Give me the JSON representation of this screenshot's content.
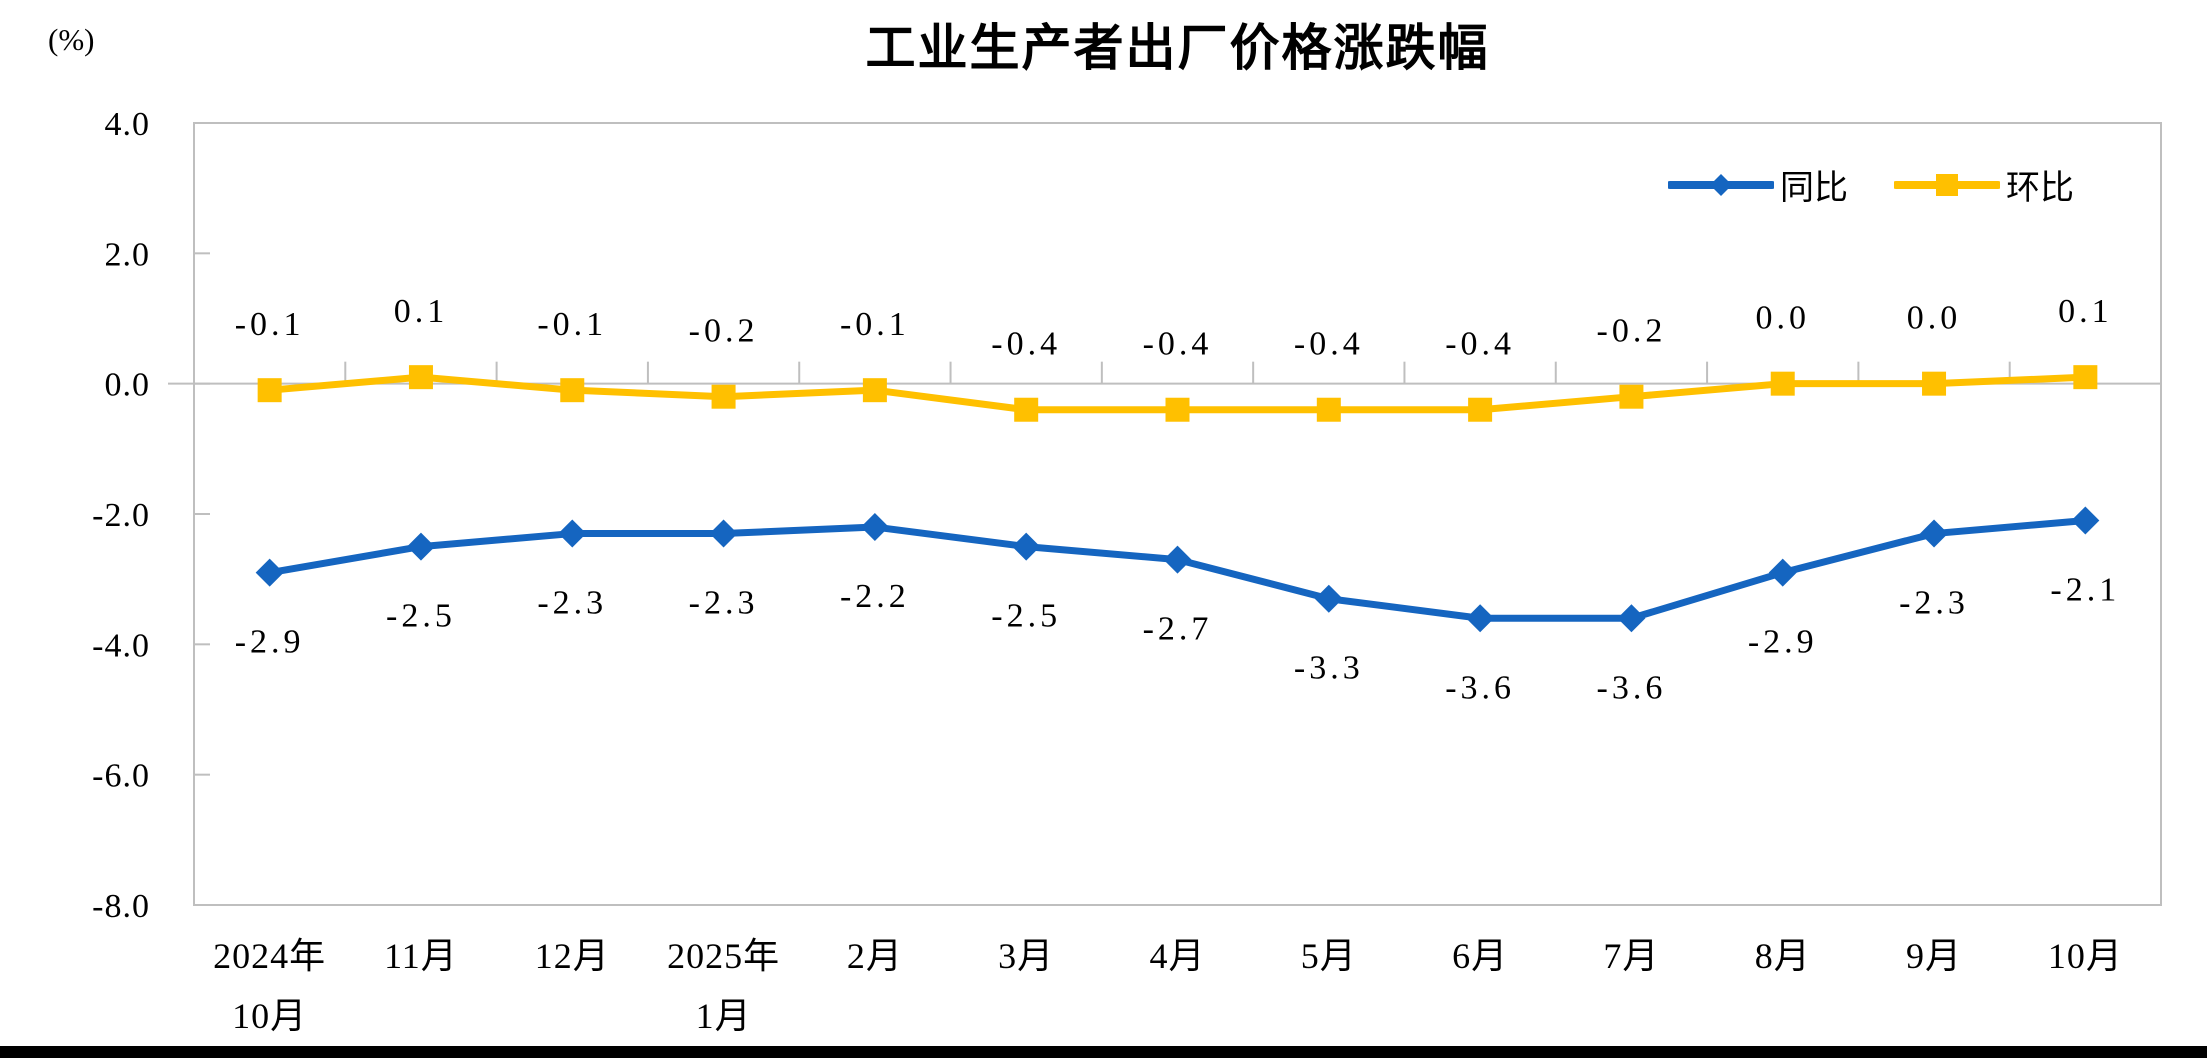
{
  "window": {
    "bottom_edge_color": "#000000"
  },
  "chart_data": {
    "type": "line",
    "title": "工业生产者出厂价格涨跌幅",
    "unit_label": "(%)",
    "categories": [
      [
        "2024年",
        "10月"
      ],
      [
        "11月"
      ],
      [
        "12月"
      ],
      [
        "2025年",
        "1月"
      ],
      [
        "2月"
      ],
      [
        "3月"
      ],
      [
        "4月"
      ],
      [
        "5月"
      ],
      [
        "6月"
      ],
      [
        "7月"
      ],
      [
        "8月"
      ],
      [
        "9月"
      ],
      [
        "10月"
      ]
    ],
    "series": [
      {
        "name": "同比",
        "marker": "diamond",
        "color": "#1565C0",
        "label_position": "below",
        "values": [
          -2.9,
          -2.5,
          -2.3,
          -2.3,
          -2.2,
          -2.5,
          -2.7,
          -3.3,
          -3.6,
          -3.6,
          -2.9,
          -2.3,
          -2.1
        ],
        "labels": [
          "-2.9",
          "-2.5",
          "-2.3",
          "-2.3",
          "-2.2",
          "-2.5",
          "-2.7",
          "-3.3",
          "-3.6",
          "-3.6",
          "-2.9",
          "-2.3",
          "-2.1"
        ]
      },
      {
        "name": "环比",
        "marker": "square",
        "color": "#FFC000",
        "label_position": "above",
        "values": [
          -0.1,
          0.1,
          -0.1,
          -0.2,
          -0.1,
          -0.4,
          -0.4,
          -0.4,
          -0.4,
          -0.2,
          0.0,
          0.0,
          0.1
        ],
        "labels": [
          "-0.1",
          "0.1",
          "-0.1",
          "-0.2",
          "-0.1",
          "-0.4",
          "-0.4",
          "-0.4",
          "-0.4",
          "-0.2",
          "0.0",
          "0.0",
          "0.1"
        ]
      }
    ],
    "y_axis": {
      "min": -8.0,
      "max": 4.0,
      "step": 2.0,
      "tick_labels": [
        "4.0",
        "2.0",
        "0.0",
        "-2.0",
        "-4.0",
        "-6.0",
        "-8.0"
      ]
    },
    "legend": {
      "position": "top-right",
      "items": [
        "同比",
        "环比"
      ]
    },
    "axis_color": "#BFBFBF",
    "grid": "off"
  }
}
